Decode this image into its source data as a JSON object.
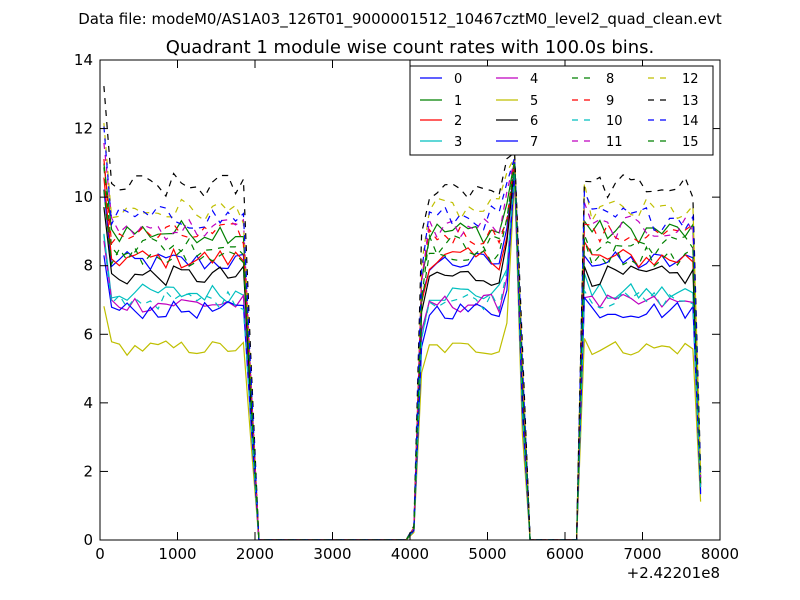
{
  "figure": {
    "suptitle": "Data file: modeM0/AS1A03_126T01_9000001512_10467cztM0_level2_quad_clean.evt",
    "title": "Quadrant 1 module wise count rates with 100.0s bins.",
    "x_offset_label": "+2.42201e8"
  },
  "chart_data": {
    "type": "line",
    "title": "Quadrant 1 module wise count rates with 100.0s bins.",
    "xlabel": "",
    "ylabel": "",
    "xlim": [
      0,
      8000
    ],
    "ylim": [
      0,
      14
    ],
    "x_offset": 242201000,
    "xticks": [
      0,
      1000,
      2000,
      3000,
      4000,
      5000,
      6000,
      7000,
      8000
    ],
    "yticks": [
      0,
      2,
      4,
      6,
      8,
      10,
      12,
      14
    ],
    "legend_position": "top-right",
    "legend_columns": 4,
    "series_spec": [
      {
        "name": "0",
        "color": "#0000ff",
        "dash": "solid",
        "base": 8.1
      },
      {
        "name": "1",
        "color": "#008000",
        "dash": "solid",
        "base": 9.0
      },
      {
        "name": "2",
        "color": "#ff0000",
        "dash": "solid",
        "base": 8.2
      },
      {
        "name": "3",
        "color": "#00bfbf",
        "dash": "solid",
        "base": 7.2
      },
      {
        "name": "4",
        "color": "#bf00bf",
        "dash": "solid",
        "base": 6.9
      },
      {
        "name": "5",
        "color": "#bfbf00",
        "dash": "solid",
        "base": 5.6
      },
      {
        "name": "6",
        "color": "#000000",
        "dash": "solid",
        "base": 7.7
      },
      {
        "name": "7",
        "color": "#0000ff",
        "dash": "solid",
        "base": 6.7
      },
      {
        "name": "8",
        "color": "#008000",
        "dash": "dashed",
        "base": 8.6
      },
      {
        "name": "9",
        "color": "#ff0000",
        "dash": "dashed",
        "base": 8.9
      },
      {
        "name": "10",
        "color": "#00bfbf",
        "dash": "dashed",
        "base": 7.0
      },
      {
        "name": "11",
        "color": "#bf00bf",
        "dash": "dashed",
        "base": 9.1
      },
      {
        "name": "12",
        "color": "#bfbf00",
        "dash": "dashed",
        "base": 9.6
      },
      {
        "name": "13",
        "color": "#000000",
        "dash": "dashed",
        "base": 10.3
      },
      {
        "name": "14",
        "color": "#0000ff",
        "dash": "dashed",
        "base": 9.4
      },
      {
        "name": "15",
        "color": "#008000",
        "dash": "dashed",
        "base": 8.3
      }
    ],
    "x": [
      50,
      150,
      250,
      350,
      450,
      550,
      650,
      750,
      850,
      950,
      1050,
      1150,
      1250,
      1350,
      1450,
      1550,
      1650,
      1750,
      1850,
      1950,
      2050,
      2150,
      2250,
      2350,
      2450,
      2550,
      2650,
      2750,
      2850,
      2950,
      3050,
      3150,
      3250,
      3350,
      3450,
      3550,
      3650,
      3750,
      3850,
      3950,
      4050,
      4150,
      4250,
      4350,
      4450,
      4550,
      4650,
      4750,
      4850,
      4950,
      5050,
      5150,
      5250,
      5350,
      5450,
      5550,
      5650,
      5750,
      5850,
      5950,
      6050,
      6150,
      6250,
      6350,
      6450,
      6550,
      6650,
      6750,
      6850,
      6950,
      7050,
      7150,
      7250,
      7350,
      7450,
      7550,
      7650,
      7750
    ],
    "segments": [
      {
        "start": 50,
        "end": 1850,
        "level": 1.0,
        "first_boost": 1.25,
        "last_level": 1.0,
        "peak_x": null
      },
      {
        "start": 1950,
        "end": 1950,
        "level": 0.5,
        "first_boost": 1.0,
        "last_level": 0.5,
        "peak_x": null
      },
      {
        "start": 2050,
        "end": 2050,
        "level": 0.0,
        "first_boost": 1.0,
        "last_level": 0.0,
        "peak_x": null
      },
      {
        "start": 2150,
        "end": 3950,
        "level": 0.0,
        "first_boost": 1.0,
        "last_level": 0.0,
        "peak_x": null
      },
      {
        "start": 4050,
        "end": 4050,
        "level": 0.04,
        "first_boost": 1.0,
        "last_level": 0.04,
        "peak_x": null
      },
      {
        "start": 4150,
        "end": 5350,
        "level": 1.0,
        "first_boost": 0.85,
        "last_level": 1.0,
        "peak_x": 5350
      },
      {
        "start": 5450,
        "end": 5450,
        "level": 0.55,
        "first_boost": 1.0,
        "last_level": 0.55,
        "peak_x": null
      },
      {
        "start": 5550,
        "end": 6150,
        "level": 0.0,
        "first_boost": 1.0,
        "last_level": 0.0,
        "peak_x": null
      },
      {
        "start": 6250,
        "end": 7650,
        "level": 1.0,
        "first_boost": 1.05,
        "last_level": 1.0,
        "peak_x": null
      },
      {
        "start": 7750,
        "end": 7750,
        "level": 0.2,
        "first_boost": 1.0,
        "last_level": 0.2,
        "peak_x": null
      }
    ],
    "peak_value": 11.3,
    "noise_amplitude": 0.35
  }
}
